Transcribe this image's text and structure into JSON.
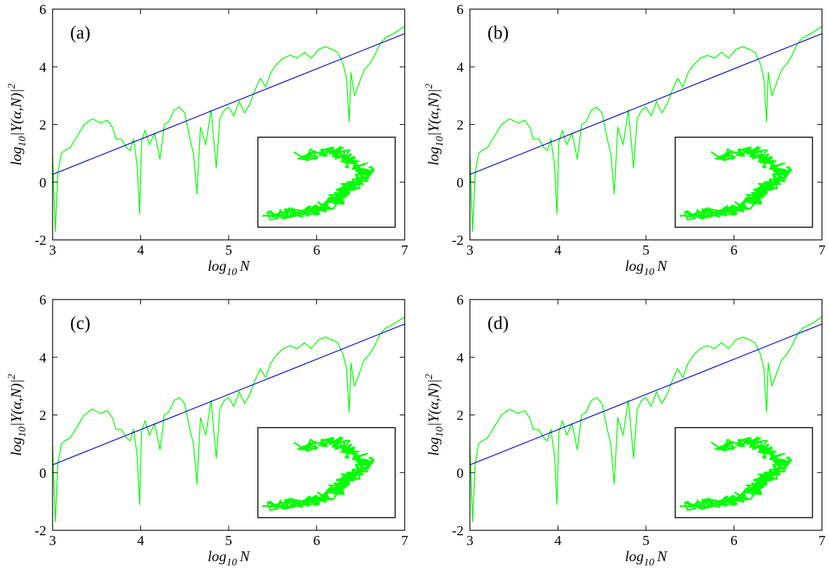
{
  "figure": {
    "panel_count": 4,
    "colors": {
      "random_walk": "#00ff00",
      "fit_line": "#0000cc",
      "frame": "#000000"
    }
  },
  "chart_data": [
    {
      "type": "line",
      "panel_label": "(a)",
      "xlabel_base": "log",
      "xlabel_sub": "10",
      "xlabel_var": "N",
      "ylabel_base": "log",
      "ylabel_sub": "10",
      "ylabel_arg": "|Y(α,N)|",
      "ylabel_sup": "2",
      "xlim": [
        3,
        7
      ],
      "ylim": [
        -2,
        6
      ],
      "xticks": [
        3,
        4,
        5,
        6,
        7
      ],
      "yticks": [
        -2,
        0,
        2,
        4,
        6
      ],
      "grid": false,
      "series": [
        {
          "style": "green noisy curve",
          "x": [
            3.0,
            3.03,
            3.06,
            3.1,
            3.14,
            3.2,
            3.28,
            3.36,
            3.45,
            3.55,
            3.62,
            3.68,
            3.72,
            3.78,
            3.84,
            3.88,
            3.92,
            3.96,
            3.99,
            4.01,
            4.05,
            4.1,
            4.16,
            4.22,
            4.27,
            4.32,
            4.38,
            4.44,
            4.5,
            4.56,
            4.6,
            4.64,
            4.68,
            4.74,
            4.8,
            4.86,
            4.9,
            4.95,
            5.0,
            5.06,
            5.12,
            5.18,
            5.24,
            5.3,
            5.36,
            5.42,
            5.48,
            5.55,
            5.62,
            5.7,
            5.78,
            5.86,
            5.94,
            6.02,
            6.1,
            6.18,
            6.24,
            6.3,
            6.34,
            6.37,
            6.39,
            6.43,
            6.48,
            6.54,
            6.6,
            6.66,
            6.72,
            6.78,
            6.84,
            6.9,
            6.95,
            7.0
          ],
          "y": [
            0.9,
            -1.7,
            0.3,
            1.0,
            1.1,
            1.2,
            1.6,
            2.0,
            2.2,
            2.05,
            2.15,
            1.9,
            1.5,
            1.5,
            1.2,
            1.1,
            1.5,
            0.6,
            -1.1,
            1.4,
            1.8,
            1.3,
            1.7,
            0.8,
            2.0,
            2.1,
            2.5,
            2.6,
            2.4,
            1.5,
            1.0,
            -0.4,
            1.9,
            1.3,
            2.5,
            0.5,
            2.2,
            2.5,
            2.6,
            2.3,
            2.8,
            2.4,
            2.7,
            3.2,
            3.6,
            3.3,
            3.8,
            4.1,
            4.3,
            4.4,
            4.3,
            4.5,
            4.3,
            4.6,
            4.7,
            4.6,
            4.5,
            4.1,
            3.6,
            2.1,
            3.8,
            3.0,
            3.4,
            3.9,
            4.1,
            4.4,
            4.8,
            5.0,
            5.1,
            5.2,
            5.3,
            5.4
          ]
        },
        {
          "style": "blue straight fit",
          "x": [
            3.0,
            7.0
          ],
          "y": [
            0.27,
            5.15
          ]
        }
      ]
    },
    {
      "type": "line",
      "panel_label": "(b)",
      "xlabel_base": "log",
      "xlabel_sub": "10",
      "xlabel_var": "N",
      "ylabel_base": "log",
      "ylabel_sub": "10",
      "ylabel_arg": "|Y(α,N)|",
      "ylabel_sup": "2",
      "xlim": [
        3,
        7
      ],
      "ylim": [
        -2,
        6
      ],
      "xticks": [
        3,
        4,
        5,
        6,
        7
      ],
      "yticks": [
        -2,
        0,
        2,
        4,
        6
      ],
      "grid": false,
      "series": [
        {
          "style": "green noisy curve",
          "x": [
            3.0,
            3.03,
            3.06,
            3.1,
            3.14,
            3.2,
            3.28,
            3.36,
            3.45,
            3.55,
            3.62,
            3.68,
            3.72,
            3.78,
            3.84,
            3.88,
            3.92,
            3.96,
            3.99,
            4.01,
            4.05,
            4.1,
            4.16,
            4.22,
            4.27,
            4.32,
            4.38,
            4.44,
            4.5,
            4.56,
            4.6,
            4.64,
            4.68,
            4.74,
            4.8,
            4.86,
            4.9,
            4.95,
            5.0,
            5.06,
            5.12,
            5.18,
            5.24,
            5.3,
            5.36,
            5.42,
            5.48,
            5.55,
            5.62,
            5.7,
            5.78,
            5.86,
            5.94,
            6.02,
            6.1,
            6.18,
            6.24,
            6.3,
            6.34,
            6.37,
            6.39,
            6.43,
            6.48,
            6.54,
            6.6,
            6.66,
            6.72,
            6.78,
            6.84,
            6.9,
            6.95,
            7.0
          ],
          "y": [
            0.9,
            -1.7,
            0.3,
            1.0,
            1.1,
            1.2,
            1.6,
            2.0,
            2.2,
            2.05,
            2.15,
            1.9,
            1.5,
            1.5,
            1.2,
            1.1,
            1.5,
            0.6,
            -1.1,
            1.4,
            1.8,
            1.3,
            1.7,
            0.8,
            2.0,
            2.1,
            2.5,
            2.6,
            2.4,
            1.5,
            1.0,
            -0.4,
            1.9,
            1.3,
            2.5,
            0.5,
            2.2,
            2.5,
            2.6,
            2.3,
            2.8,
            2.4,
            2.7,
            3.2,
            3.6,
            3.3,
            3.8,
            4.1,
            4.3,
            4.4,
            4.3,
            4.5,
            4.3,
            4.6,
            4.7,
            4.6,
            4.5,
            4.1,
            3.6,
            2.1,
            3.8,
            3.0,
            3.4,
            3.9,
            4.1,
            4.4,
            4.8,
            5.0,
            5.1,
            5.2,
            5.3,
            5.4
          ]
        },
        {
          "style": "blue straight fit",
          "x": [
            3.0,
            7.0
          ],
          "y": [
            0.27,
            5.15
          ]
        }
      ]
    },
    {
      "type": "line",
      "panel_label": "(c)",
      "xlabel_base": "log",
      "xlabel_sub": "10",
      "xlabel_var": "N",
      "ylabel_base": "log",
      "ylabel_sub": "10",
      "ylabel_arg": "|Y(α,N)|",
      "ylabel_sup": "2",
      "xlim": [
        3,
        7
      ],
      "ylim": [
        -2,
        6
      ],
      "xticks": [
        3,
        4,
        5,
        6,
        7
      ],
      "yticks": [
        -2,
        0,
        2,
        4,
        6
      ],
      "grid": false,
      "series": [
        {
          "style": "green noisy curve",
          "x": [
            3.0,
            3.03,
            3.06,
            3.1,
            3.14,
            3.2,
            3.28,
            3.36,
            3.45,
            3.55,
            3.62,
            3.68,
            3.72,
            3.78,
            3.84,
            3.88,
            3.92,
            3.96,
            3.99,
            4.01,
            4.05,
            4.1,
            4.16,
            4.22,
            4.27,
            4.32,
            4.38,
            4.44,
            4.5,
            4.56,
            4.6,
            4.64,
            4.68,
            4.74,
            4.8,
            4.86,
            4.9,
            4.95,
            5.0,
            5.06,
            5.12,
            5.18,
            5.24,
            5.3,
            5.36,
            5.42,
            5.48,
            5.55,
            5.62,
            5.7,
            5.78,
            5.86,
            5.94,
            6.02,
            6.1,
            6.18,
            6.24,
            6.3,
            6.34,
            6.37,
            6.39,
            6.43,
            6.48,
            6.54,
            6.6,
            6.66,
            6.72,
            6.78,
            6.84,
            6.9,
            6.95,
            7.0
          ],
          "y": [
            0.9,
            -1.7,
            0.3,
            1.0,
            1.1,
            1.2,
            1.6,
            2.0,
            2.2,
            2.05,
            2.15,
            1.9,
            1.5,
            1.5,
            1.2,
            1.1,
            1.5,
            0.6,
            -1.1,
            1.4,
            1.8,
            1.3,
            1.7,
            0.8,
            2.0,
            2.1,
            2.5,
            2.6,
            2.4,
            1.5,
            1.0,
            -0.4,
            1.9,
            1.3,
            2.5,
            0.5,
            2.2,
            2.5,
            2.6,
            2.3,
            2.8,
            2.4,
            2.7,
            3.2,
            3.6,
            3.3,
            3.8,
            4.1,
            4.3,
            4.4,
            4.3,
            4.5,
            4.3,
            4.6,
            4.7,
            4.6,
            4.5,
            4.1,
            3.6,
            2.1,
            3.8,
            3.0,
            3.4,
            3.9,
            4.1,
            4.4,
            4.8,
            5.0,
            5.1,
            5.2,
            5.3,
            5.4
          ]
        },
        {
          "style": "blue straight fit",
          "x": [
            3.0,
            7.0
          ],
          "y": [
            0.27,
            5.15
          ]
        }
      ]
    },
    {
      "type": "line",
      "panel_label": "(d)",
      "xlabel_base": "log",
      "xlabel_sub": "10",
      "xlabel_var": "N",
      "ylabel_base": "log",
      "ylabel_sub": "10",
      "ylabel_arg": "|Y(α,N)|",
      "ylabel_sup": "2",
      "xlim": [
        3,
        7
      ],
      "ylim": [
        -2,
        6
      ],
      "xticks": [
        3,
        4,
        5,
        6,
        7
      ],
      "yticks": [
        -2,
        0,
        2,
        4,
        6
      ],
      "grid": false,
      "series": [
        {
          "style": "green noisy curve",
          "x": [
            3.0,
            3.03,
            3.06,
            3.1,
            3.14,
            3.2,
            3.28,
            3.36,
            3.45,
            3.55,
            3.62,
            3.68,
            3.72,
            3.78,
            3.84,
            3.88,
            3.92,
            3.96,
            3.99,
            4.01,
            4.05,
            4.1,
            4.16,
            4.22,
            4.27,
            4.32,
            4.38,
            4.44,
            4.5,
            4.56,
            4.6,
            4.64,
            4.68,
            4.74,
            4.8,
            4.86,
            4.9,
            4.95,
            5.0,
            5.06,
            5.12,
            5.18,
            5.24,
            5.3,
            5.36,
            5.42,
            5.48,
            5.55,
            5.62,
            5.7,
            5.78,
            5.86,
            5.94,
            6.02,
            6.1,
            6.18,
            6.24,
            6.3,
            6.34,
            6.37,
            6.39,
            6.43,
            6.48,
            6.54,
            6.6,
            6.66,
            6.72,
            6.78,
            6.84,
            6.9,
            6.95,
            7.0
          ],
          "y": [
            0.9,
            -1.7,
            0.3,
            1.0,
            1.1,
            1.2,
            1.6,
            2.0,
            2.2,
            2.05,
            2.15,
            1.9,
            1.5,
            1.5,
            1.2,
            1.1,
            1.5,
            0.6,
            -1.1,
            1.4,
            1.8,
            1.3,
            1.7,
            0.8,
            2.0,
            2.1,
            2.5,
            2.6,
            2.4,
            1.5,
            1.0,
            -0.4,
            1.9,
            1.3,
            2.5,
            0.5,
            2.2,
            2.5,
            2.6,
            2.3,
            2.8,
            2.4,
            2.7,
            3.2,
            3.6,
            3.3,
            3.8,
            4.1,
            4.3,
            4.4,
            4.3,
            4.5,
            4.3,
            4.6,
            4.7,
            4.6,
            4.5,
            4.1,
            3.6,
            2.1,
            3.8,
            3.0,
            3.4,
            3.9,
            4.1,
            4.4,
            4.8,
            5.0,
            5.1,
            5.2,
            5.3,
            5.4
          ]
        },
        {
          "style": "blue straight fit",
          "x": [
            3.0,
            7.0
          ],
          "y": [
            0.27,
            5.15
          ]
        }
      ]
    }
  ]
}
